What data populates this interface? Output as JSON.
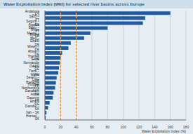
{
  "chart_data": {
    "type": "bar",
    "title": "Water Exploitation Index (WEI) for selected river basins across Europe",
    "x_label": "Water Exploitation Index (%)",
    "orientation": "horizontal",
    "categories": [
      "Andalusia – ES",
      "Sado – PT",
      "Segura – ES",
      "Algarve Basin – PT",
      "Rhine Meuse – FR",
      "Rhone Med – FR",
      "Elbe – DE",
      "Weser – DE",
      "Rhine – DE",
      "Thames – UK",
      "Seine Normandie – FR",
      "Oder – DE",
      "Tisza – HU",
      "Wales Severn – UK",
      "Loire Bretagne – FR",
      "Humber Northumbria – UK",
      "Danube – DE",
      "Adour Garonne – FR",
      "Ems – DE",
      "Danube – SK",
      "Vah – SK",
      "Hornad – SK"
    ],
    "values": [
      160,
      128,
      125,
      80,
      58,
      50,
      33,
      30,
      22,
      20,
      19,
      18,
      17,
      15,
      14,
      13,
      11,
      10,
      6,
      4,
      2,
      1
    ],
    "color": "#1f5a9e",
    "xlim": [
      0,
      180
    ],
    "xticks": [
      0,
      20,
      40,
      60,
      80,
      100,
      120,
      140,
      160,
      180
    ],
    "reference_lines": [
      20,
      40
    ],
    "reference_color": "#f29a2e",
    "grid": true
  }
}
